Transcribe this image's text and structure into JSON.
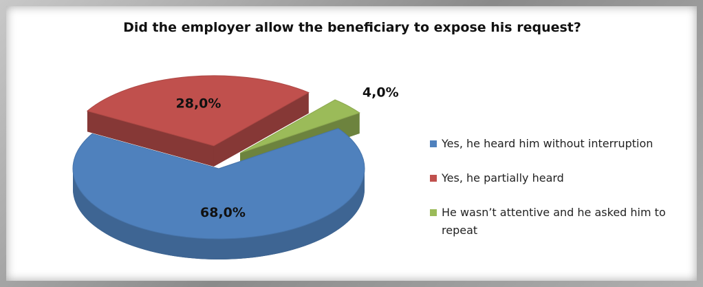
{
  "chart_data": {
    "type": "pie3d",
    "title": "Did the employer allow the beneficiary to expose his request?",
    "categories": [
      "Yes, he heard him without interruption",
      "Yes, he partially heard",
      "He wasn’t attentive and he asked him to repeat"
    ],
    "values": [
      68,
      28,
      4
    ],
    "value_labels": [
      "68,0%",
      "28,0%",
      "4,0%"
    ],
    "colors": [
      "#4f81bd",
      "#c0504d",
      "#9bbb59"
    ],
    "legend": "right"
  }
}
